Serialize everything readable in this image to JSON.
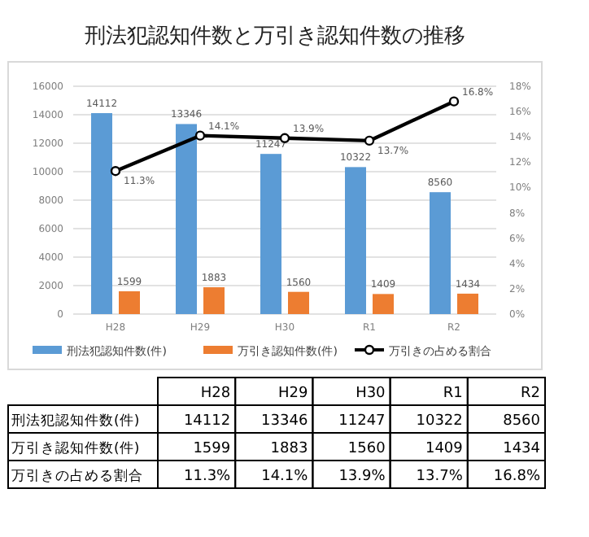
{
  "chart_data": {
    "type": "bar",
    "title": "刑法犯認知件数と万引き認知件数の推移",
    "categories": [
      "H28",
      "H29",
      "H30",
      "R1",
      "R2"
    ],
    "series": [
      {
        "name": "刑法犯認知件数(件)",
        "color": "#5b9bd5",
        "values": [
          14112,
          13346,
          11247,
          10322,
          8560
        ],
        "value_labels": [
          "14112",
          "13346",
          "11247",
          "10322",
          "8560"
        ]
      },
      {
        "name": "万引き認知件数(件)",
        "color": "#ed7d31",
        "values": [
          1599,
          1883,
          1560,
          1409,
          1434
        ],
        "value_labels": [
          "1599",
          "1883",
          "1560",
          "1409",
          "1434"
        ]
      },
      {
        "name": "万引きの占める割合",
        "type": "line",
        "axis": "y2",
        "color": "#000000",
        "values": [
          11.3,
          14.1,
          13.9,
          13.7,
          16.8
        ],
        "value_labels": [
          "11.3%",
          "14.1%",
          "13.9%",
          "13.7%",
          "16.8%"
        ]
      }
    ],
    "ylim": [
      0,
      16000
    ],
    "yticks": [
      0,
      2000,
      4000,
      6000,
      8000,
      10000,
      12000,
      14000,
      16000
    ],
    "y2lim": [
      0,
      18
    ],
    "y2ticks": [
      {
        "value": 0,
        "label": "0%"
      },
      {
        "value": 2,
        "label": "2%"
      },
      {
        "value": 4,
        "label": "4%"
      },
      {
        "value": 6,
        "label": "6%"
      },
      {
        "value": 8,
        "label": "8%"
      },
      {
        "value": 10,
        "label": "10%"
      },
      {
        "value": 12,
        "label": "12%"
      },
      {
        "value": 14,
        "label": "14%"
      },
      {
        "value": 16,
        "label": "16%"
      },
      {
        "value": 18,
        "label": "18%"
      }
    ],
    "grid": "y",
    "legend": "bottom",
    "marker": "circle",
    "data_labels": true
  }
}
